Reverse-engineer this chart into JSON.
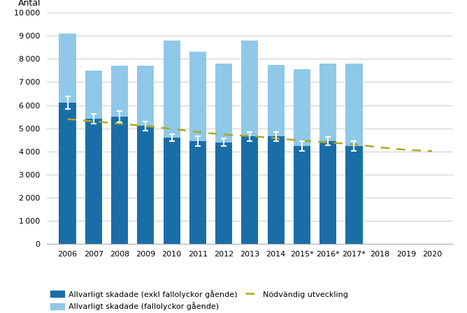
{
  "years_bars": [
    2006,
    2007,
    2008,
    2009,
    2010,
    2011,
    2012,
    2013,
    2014,
    2015,
    2016,
    2017
  ],
  "dark_blue": [
    6100,
    5400,
    5500,
    5100,
    4600,
    4450,
    4400,
    4650,
    4650,
    4250,
    4450,
    4250
  ],
  "light_blue_top": [
    3000,
    2100,
    2200,
    2600,
    4200,
    3850,
    3400,
    4150,
    3100,
    3300,
    3350,
    3550
  ],
  "error_bars": [
    280,
    210,
    230,
    200,
    160,
    200,
    160,
    200,
    190,
    210,
    190,
    210
  ],
  "trend_years": [
    2006,
    2007,
    2008,
    2009,
    2010,
    2011,
    2012,
    2013,
    2014,
    2015,
    2016,
    2017,
    2018,
    2019,
    2020
  ],
  "trend_values": [
    5400,
    5300,
    5200,
    5100,
    4980,
    4840,
    4730,
    4670,
    4570,
    4470,
    4390,
    4310,
    4175,
    4070,
    4020
  ],
  "all_years": [
    2006,
    2007,
    2008,
    2009,
    2010,
    2011,
    2012,
    2013,
    2014,
    2015,
    2016,
    2017,
    2018,
    2019,
    2020
  ],
  "dark_blue_color": "#1A6EA8",
  "light_blue_color": "#90C8E8",
  "trend_color": "#AAAA22",
  "ylabel": "Antal",
  "ylim": [
    0,
    10000
  ],
  "yticks": [
    0,
    1000,
    2000,
    3000,
    4000,
    5000,
    6000,
    7000,
    8000,
    9000,
    10000
  ],
  "legend_dark": "Allvarligt skadade (exkl fallolyckor gående)",
  "legend_light": "Allvarligt skadade (fallolyckor gående)",
  "legend_trend": "Nödvändig utveckling",
  "bar_width": 0.65,
  "year_labels": [
    "2006",
    "2007",
    "2008",
    "2009",
    "2010",
    "2011",
    "2012",
    "2013",
    "2014",
    "2015*",
    "2016*",
    "2017*",
    "2018",
    "2019",
    "2020"
  ]
}
